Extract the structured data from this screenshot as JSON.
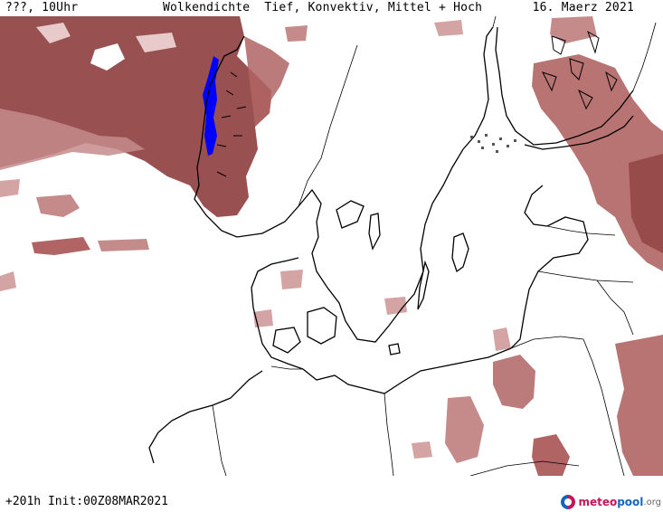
{
  "header": {
    "valid_label": "???, 10Uhr",
    "title": "Wolkendichte  Tief, Konvektiv, Mittel + Hoch",
    "date": "16. Maerz 2021"
  },
  "footer": {
    "run_info": "+201h Init:00Z08MAR2021"
  },
  "logo": {
    "part1": "meteo",
    "part2": "pool",
    "part3": ".org"
  },
  "map_style": {
    "cloud_dark": "#8e3d3d",
    "cloud_mid": "#b06464",
    "cloud_light": "#d4a3a3",
    "sea_ice": "#0000ff",
    "coast": "#000000",
    "border": "#000000",
    "logo_pink": "#c2185b",
    "logo_blue": "#1565c0"
  }
}
